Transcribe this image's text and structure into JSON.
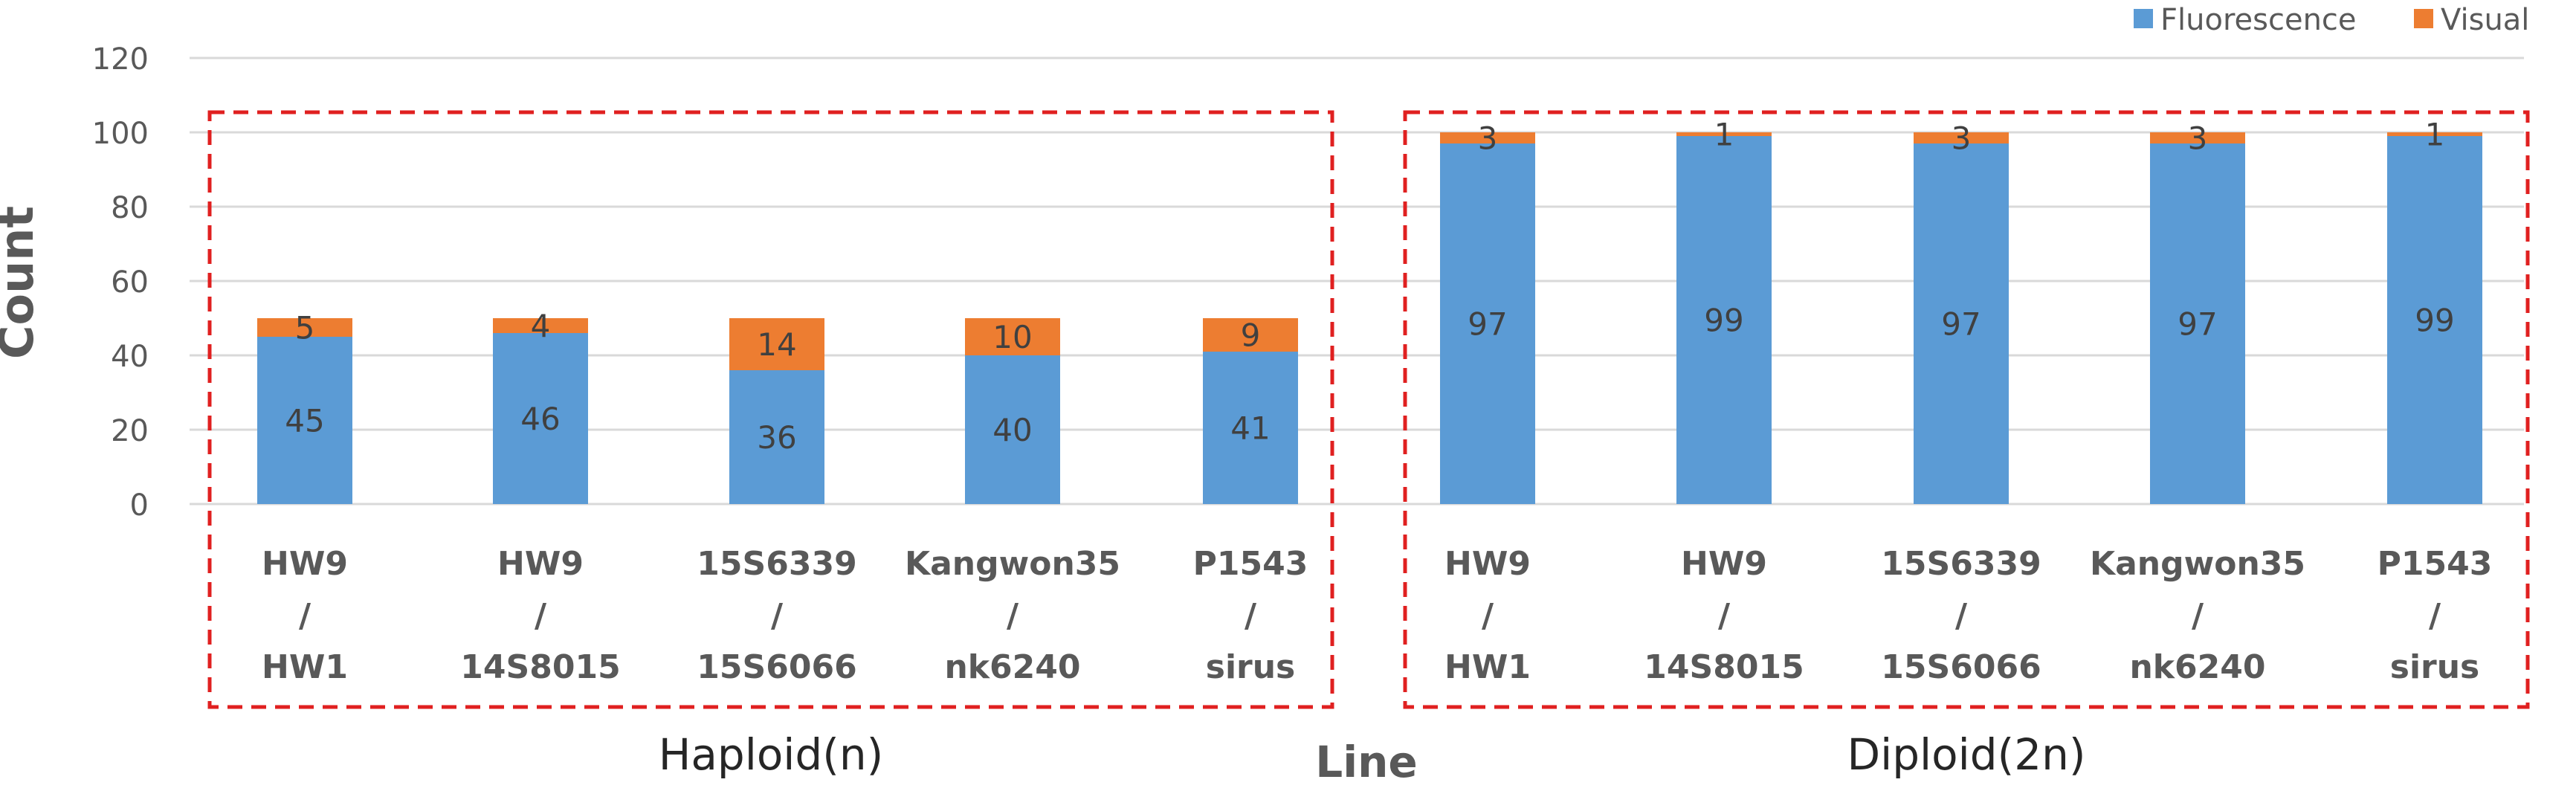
{
  "chart_data": {
    "type": "bar",
    "stacked": true,
    "ylabel": "Count",
    "xlabel": "Line",
    "ylim": [
      0,
      120
    ],
    "yticks": [
      0,
      20,
      40,
      60,
      80,
      100,
      120
    ],
    "grid": true,
    "legend_position": "top-right",
    "categories": [
      [
        "HW9",
        "/",
        "HW1"
      ],
      [
        "HW9",
        "/",
        "14S8015"
      ],
      [
        "15S6339",
        "/",
        "15S6066"
      ],
      [
        "Kangwon35",
        "/",
        "nk6240"
      ],
      [
        "P1543",
        "/",
        "sirus"
      ],
      [
        "HW9",
        "/",
        "HW1"
      ],
      [
        "HW9",
        "/",
        "14S8015"
      ],
      [
        "15S6339",
        "/",
        "15S6066"
      ],
      [
        "Kangwon35",
        "/",
        "nk6240"
      ],
      [
        "P1543",
        "/",
        "sirus"
      ]
    ],
    "series": [
      {
        "name": "Fluorescence",
        "color": "#5b9bd5",
        "values": [
          45,
          46,
          36,
          40,
          41,
          97,
          99,
          97,
          97,
          99
        ]
      },
      {
        "name": "Visual",
        "color": "#ed7d31",
        "values": [
          5,
          4,
          14,
          10,
          9,
          3,
          1,
          3,
          3,
          1
        ]
      }
    ],
    "groups": [
      {
        "label": "Haploid(n)",
        "start": 0,
        "end": 4
      },
      {
        "label": "Diploid(2n)",
        "start": 5,
        "end": 9
      }
    ]
  }
}
